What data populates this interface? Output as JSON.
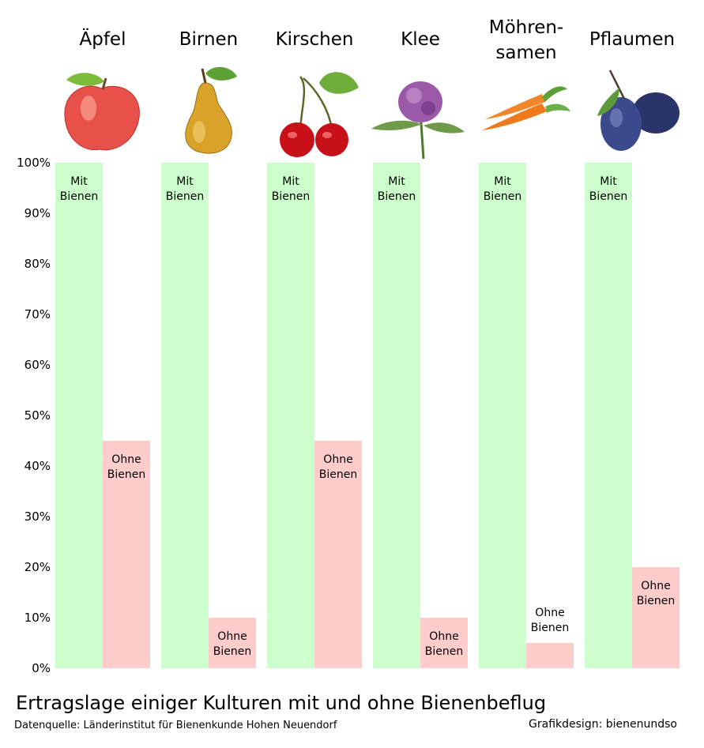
{
  "chart_data": {
    "type": "bar",
    "title": "Ertragslage einiger Kulturen mit und ohne Bienenbeflug",
    "xlabel": "",
    "ylabel": "",
    "ylim": [
      0,
      100
    ],
    "y_tick_labels": [
      "0%",
      "10%",
      "20%",
      "30%",
      "40%",
      "50%",
      "60%",
      "70%",
      "80%",
      "90%",
      "100%"
    ],
    "category_labels": [
      [
        "Äpfel"
      ],
      [
        "Birnen"
      ],
      [
        "Kirschen"
      ],
      [
        "Klee"
      ],
      [
        "Möhren-",
        "samen"
      ],
      [
        "Pflaumen"
      ]
    ],
    "categories": [
      "Äpfel",
      "Birnen",
      "Kirschen",
      "Klee",
      "Möhrensamen",
      "Pflaumen"
    ],
    "category_icons": [
      "apple-icon",
      "pear-icon",
      "cherries-icon",
      "clover-icon",
      "carrots-icon",
      "plums-icon"
    ],
    "series": [
      {
        "name": "Mit Bienen",
        "label_lines": [
          "Mit",
          "Bienen"
        ],
        "color": "#ccffcc",
        "values": [
          100,
          100,
          100,
          100,
          100,
          100
        ]
      },
      {
        "name": "Ohne Bienen",
        "label_lines": [
          "Ohne",
          "Bienen"
        ],
        "color": "#ffcccc",
        "values": [
          45,
          10,
          45,
          10,
          5,
          20
        ]
      }
    ],
    "grid": false,
    "legend": "none"
  },
  "footer": {
    "source": "Datenquelle: Länderinstitut für Bienenkunde Hohen Neuendorf",
    "design": "Grafikdesign: bienenundso"
  },
  "colors": {
    "mit": "#ccffcc",
    "ohne": "#ffcccc"
  }
}
